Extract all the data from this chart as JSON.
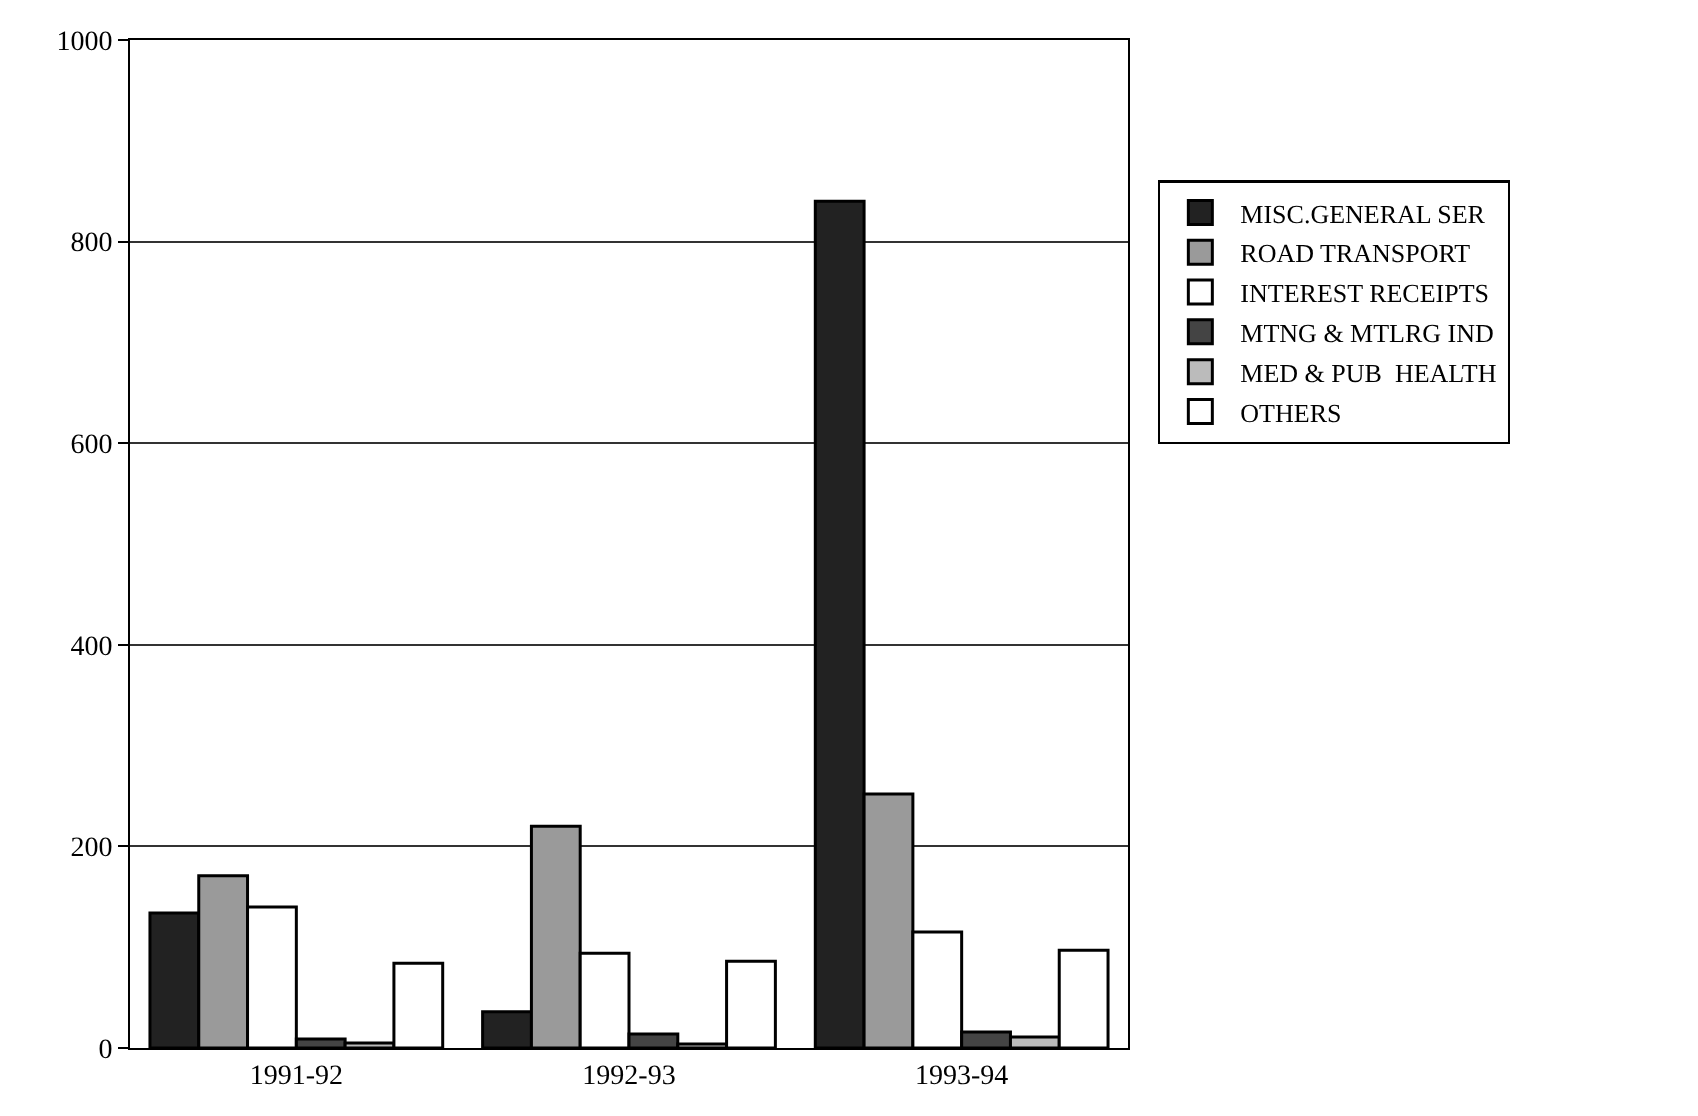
{
  "chart_data": {
    "type": "bar",
    "categories": [
      "1991-92",
      "1992-93",
      "1993-94"
    ],
    "series": [
      {
        "name": "MISC.GENERAL SER",
        "color": "#222222",
        "values": [
          134,
          36,
          840
        ]
      },
      {
        "name": "ROAD TRANSPORT",
        "color": "#9a9a9a",
        "values": [
          171,
          220,
          252
        ]
      },
      {
        "name": "INTEREST RECEIPTS",
        "color": "#ffffff",
        "values": [
          140,
          94,
          115
        ]
      },
      {
        "name": "MTNG & MTLRG IND",
        "color": "#444444",
        "values": [
          9,
          14,
          16
        ]
      },
      {
        "name": "MED & PUB  HEALTH",
        "color": "#bbbbbb",
        "values": [
          5,
          4,
          11
        ]
      },
      {
        "name": "OTHERS",
        "color": "#ffffff",
        "values": [
          84,
          86,
          97
        ]
      }
    ],
    "ylim": [
      0,
      1000
    ],
    "yticks": [
      0,
      200,
      400,
      600,
      800,
      1000
    ],
    "grid": "y",
    "legend": "right"
  }
}
